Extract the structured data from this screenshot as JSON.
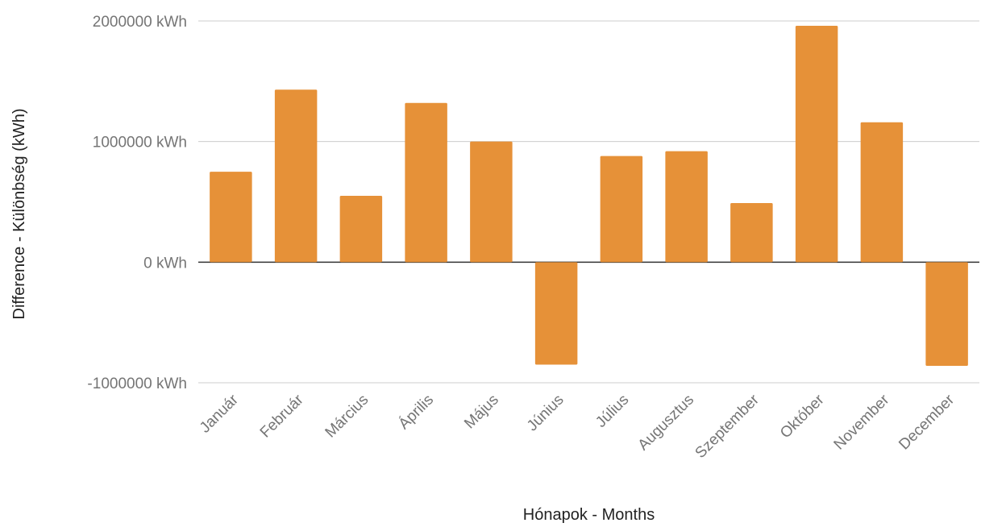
{
  "chart_data": {
    "type": "bar",
    "title": "",
    "xlabel": "Hónapok - Months",
    "ylabel": "Difference - Különbség (kWh)",
    "categories": [
      "Január",
      "Február",
      "Március",
      "Április",
      "Május",
      "Június",
      "Július",
      "Augusztus",
      "Szeptember",
      "Október",
      "November",
      "December"
    ],
    "values": [
      750000,
      1430000,
      550000,
      1320000,
      1000000,
      -850000,
      880000,
      920000,
      490000,
      1960000,
      1160000,
      -860000
    ],
    "ylim": [
      -1000000,
      2000000
    ],
    "yticks": [
      -1000000,
      0,
      1000000,
      2000000
    ],
    "ytick_labels": [
      "-1000000 kWh",
      "0 kWh",
      "1000000 kWh",
      "2000000 kWh"
    ],
    "grid": true,
    "bar_color": "#e69138",
    "zero_line_color": "#333333",
    "grid_color": "#cccccc"
  }
}
